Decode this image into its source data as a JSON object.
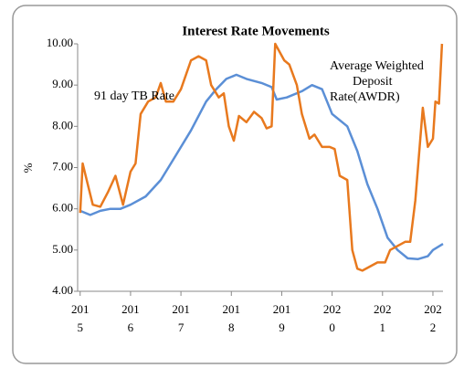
{
  "chart_data": {
    "type": "line",
    "title": "Interest Rate Movements",
    "y_label": "%",
    "annotations": [
      [
        "91 day TB Rate"
      ],
      [
        "Average Weighted",
        "Deposit",
        "Rate(AWDR)"
      ]
    ],
    "xlim": [
      2014.95,
      2022.2
    ],
    "xticks": [
      {
        "value": 2015,
        "label": "2015"
      },
      {
        "value": 2016,
        "label": "2016"
      },
      {
        "value": 2017,
        "label": "2017"
      },
      {
        "value": 2018,
        "label": "2018"
      },
      {
        "value": 2019,
        "label": "2019"
      },
      {
        "value": 2020,
        "label": "2020"
      },
      {
        "value": 2021,
        "label": "2021"
      },
      {
        "value": 2022,
        "label": "2022"
      }
    ],
    "ylim": [
      4,
      10
    ],
    "yticks": [
      {
        "value": 4,
        "label": "4.00"
      },
      {
        "value": 5,
        "label": "5.00"
      },
      {
        "value": 6,
        "label": "6.00"
      },
      {
        "value": 7,
        "label": "7.00"
      },
      {
        "value": 8,
        "label": "8.00"
      },
      {
        "value": 9,
        "label": "9.00"
      },
      {
        "value": 10,
        "label": "10.00"
      }
    ],
    "grid": false,
    "series": [
      {
        "color": "#5b8fd6",
        "x": [
          2015.0,
          2015.2,
          2015.4,
          2015.6,
          2015.8,
          2016.0,
          2016.3,
          2016.6,
          2016.9,
          2017.2,
          2017.5,
          2017.7,
          2017.9,
          2018.1,
          2018.3,
          2018.6,
          2018.8,
          2018.9,
          2019.1,
          2019.4,
          2019.6,
          2019.8,
          2020.0,
          2020.3,
          2020.5,
          2020.7,
          2020.9,
          2021.1,
          2021.3,
          2021.5,
          2021.7,
          2021.9,
          2022.0,
          2022.2
        ],
        "values": [
          5.95,
          5.85,
          5.95,
          6.0,
          6.0,
          6.1,
          6.3,
          6.7,
          7.3,
          7.9,
          8.6,
          8.9,
          9.15,
          9.25,
          9.15,
          9.05,
          8.95,
          8.65,
          8.7,
          8.85,
          9.0,
          8.9,
          8.3,
          8.0,
          7.4,
          6.6,
          6.0,
          5.3,
          5.0,
          4.8,
          4.78,
          4.85,
          5.0,
          5.15
        ]
      },
      {
        "color": "#e8791e",
        "x": [
          2015.0,
          2015.05,
          2015.15,
          2015.25,
          2015.4,
          2015.55,
          2015.7,
          2015.85,
          2016.0,
          2016.1,
          2016.2,
          2016.35,
          2016.5,
          2016.6,
          2016.7,
          2016.85,
          2017.0,
          2017.2,
          2017.35,
          2017.5,
          2017.6,
          2017.75,
          2017.85,
          2017.95,
          2018.05,
          2018.15,
          2018.3,
          2018.45,
          2018.6,
          2018.7,
          2018.8,
          2018.87,
          2019.05,
          2019.15,
          2019.3,
          2019.4,
          2019.55,
          2019.65,
          2019.8,
          2019.95,
          2020.05,
          2020.15,
          2020.3,
          2020.4,
          2020.5,
          2020.6,
          2020.75,
          2020.9,
          2021.05,
          2021.15,
          2021.3,
          2021.45,
          2021.55,
          2021.65,
          2021.8,
          2021.9,
          2022.0,
          2022.05,
          2022.12,
          2022.18
        ],
        "values": [
          5.9,
          7.1,
          6.6,
          6.1,
          6.05,
          6.4,
          6.8,
          6.1,
          6.9,
          7.1,
          8.3,
          8.6,
          8.7,
          9.05,
          8.6,
          8.6,
          8.9,
          9.6,
          9.7,
          9.6,
          9.0,
          8.7,
          8.8,
          8.0,
          7.65,
          8.25,
          8.1,
          8.35,
          8.2,
          7.95,
          8.0,
          10.0,
          9.6,
          9.5,
          9.0,
          8.3,
          7.7,
          7.8,
          7.5,
          7.5,
          7.45,
          6.8,
          6.7,
          5.0,
          4.55,
          4.5,
          4.6,
          4.7,
          4.7,
          5.0,
          5.1,
          5.2,
          5.2,
          6.2,
          8.45,
          7.5,
          7.7,
          8.6,
          8.55,
          10.0
        ]
      }
    ]
  }
}
